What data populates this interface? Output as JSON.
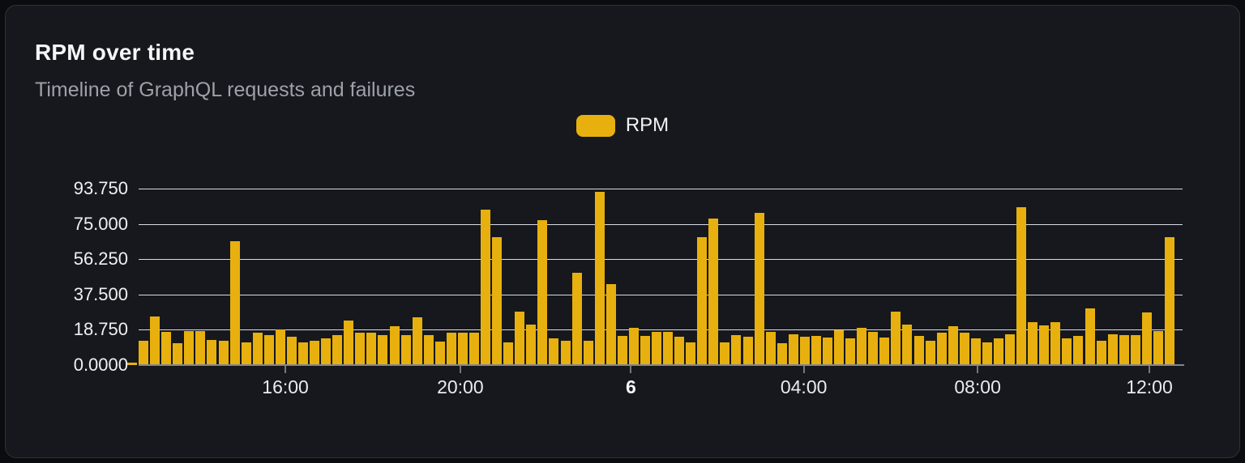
{
  "card": {
    "title": "RPM over time",
    "subtitle": "Timeline of GraphQL requests and failures"
  },
  "legend": {
    "label": "RPM",
    "swatch_color": "#e7b00e",
    "position": "top-center"
  },
  "colors": {
    "bar": "#e7b00e",
    "card_background": "#16181d",
    "page_background": "#0a0c0f",
    "gridline": "#e3e6ef",
    "axis_line": "#83868c",
    "title_text": "#f5f6f8",
    "subtitle_text": "#9da1a9",
    "tick_text": "#eef0f3"
  },
  "chart_data": {
    "type": "bar",
    "title": "RPM over time",
    "subtitle": "Timeline of GraphQL requests and failures",
    "xlabel": "",
    "ylabel": "",
    "ylim": [
      0,
      93.75
    ],
    "grid": true,
    "legend_position": "top-center",
    "y_ticks": [
      {
        "label": "0.0000",
        "value": 0
      },
      {
        "label": "18.750",
        "value": 18.75
      },
      {
        "label": "37.500",
        "value": 37.5
      },
      {
        "label": "56.250",
        "value": 56.25
      },
      {
        "label": "75.000",
        "value": 75
      },
      {
        "label": "93.750",
        "value": 93.75
      }
    ],
    "x_ticks": [
      {
        "label": "16:00",
        "pos": 0.151,
        "bold": false
      },
      {
        "label": "20:00",
        "pos": 0.318,
        "bold": false
      },
      {
        "label": "6",
        "pos": 0.481,
        "bold": true
      },
      {
        "label": "04:00",
        "pos": 0.646,
        "bold": false
      },
      {
        "label": "08:00",
        "pos": 0.812,
        "bold": false
      },
      {
        "label": "12:00",
        "pos": 0.976,
        "bold": false
      }
    ],
    "series": [
      {
        "name": "RPM",
        "color": "#e7b00e",
        "values": [
          1.5,
          13,
          26,
          17.5,
          11.5,
          18,
          18,
          13.5,
          13,
          66,
          12,
          17,
          16,
          19,
          15,
          12,
          13,
          14,
          16,
          23.5,
          17,
          17,
          16,
          20.5,
          16,
          25.5,
          16,
          12.5,
          17,
          17,
          17,
          82.5,
          68,
          12,
          28.5,
          21.5,
          77,
          14,
          13,
          49,
          13,
          92,
          43,
          15.5,
          20,
          15.5,
          17.5,
          17.5,
          15,
          12,
          68,
          78,
          12,
          16,
          15,
          81,
          17.5,
          11.5,
          16.5,
          15,
          15.5,
          14.5,
          18.5,
          14,
          20,
          17.5,
          14.5,
          28.5,
          21.5,
          15.5,
          13,
          17,
          20.5,
          17,
          14,
          12,
          14,
          16.5,
          84,
          23,
          21,
          23,
          14,
          15.5,
          30,
          13,
          16.5,
          16,
          16,
          28,
          18,
          68
        ]
      }
    ]
  }
}
